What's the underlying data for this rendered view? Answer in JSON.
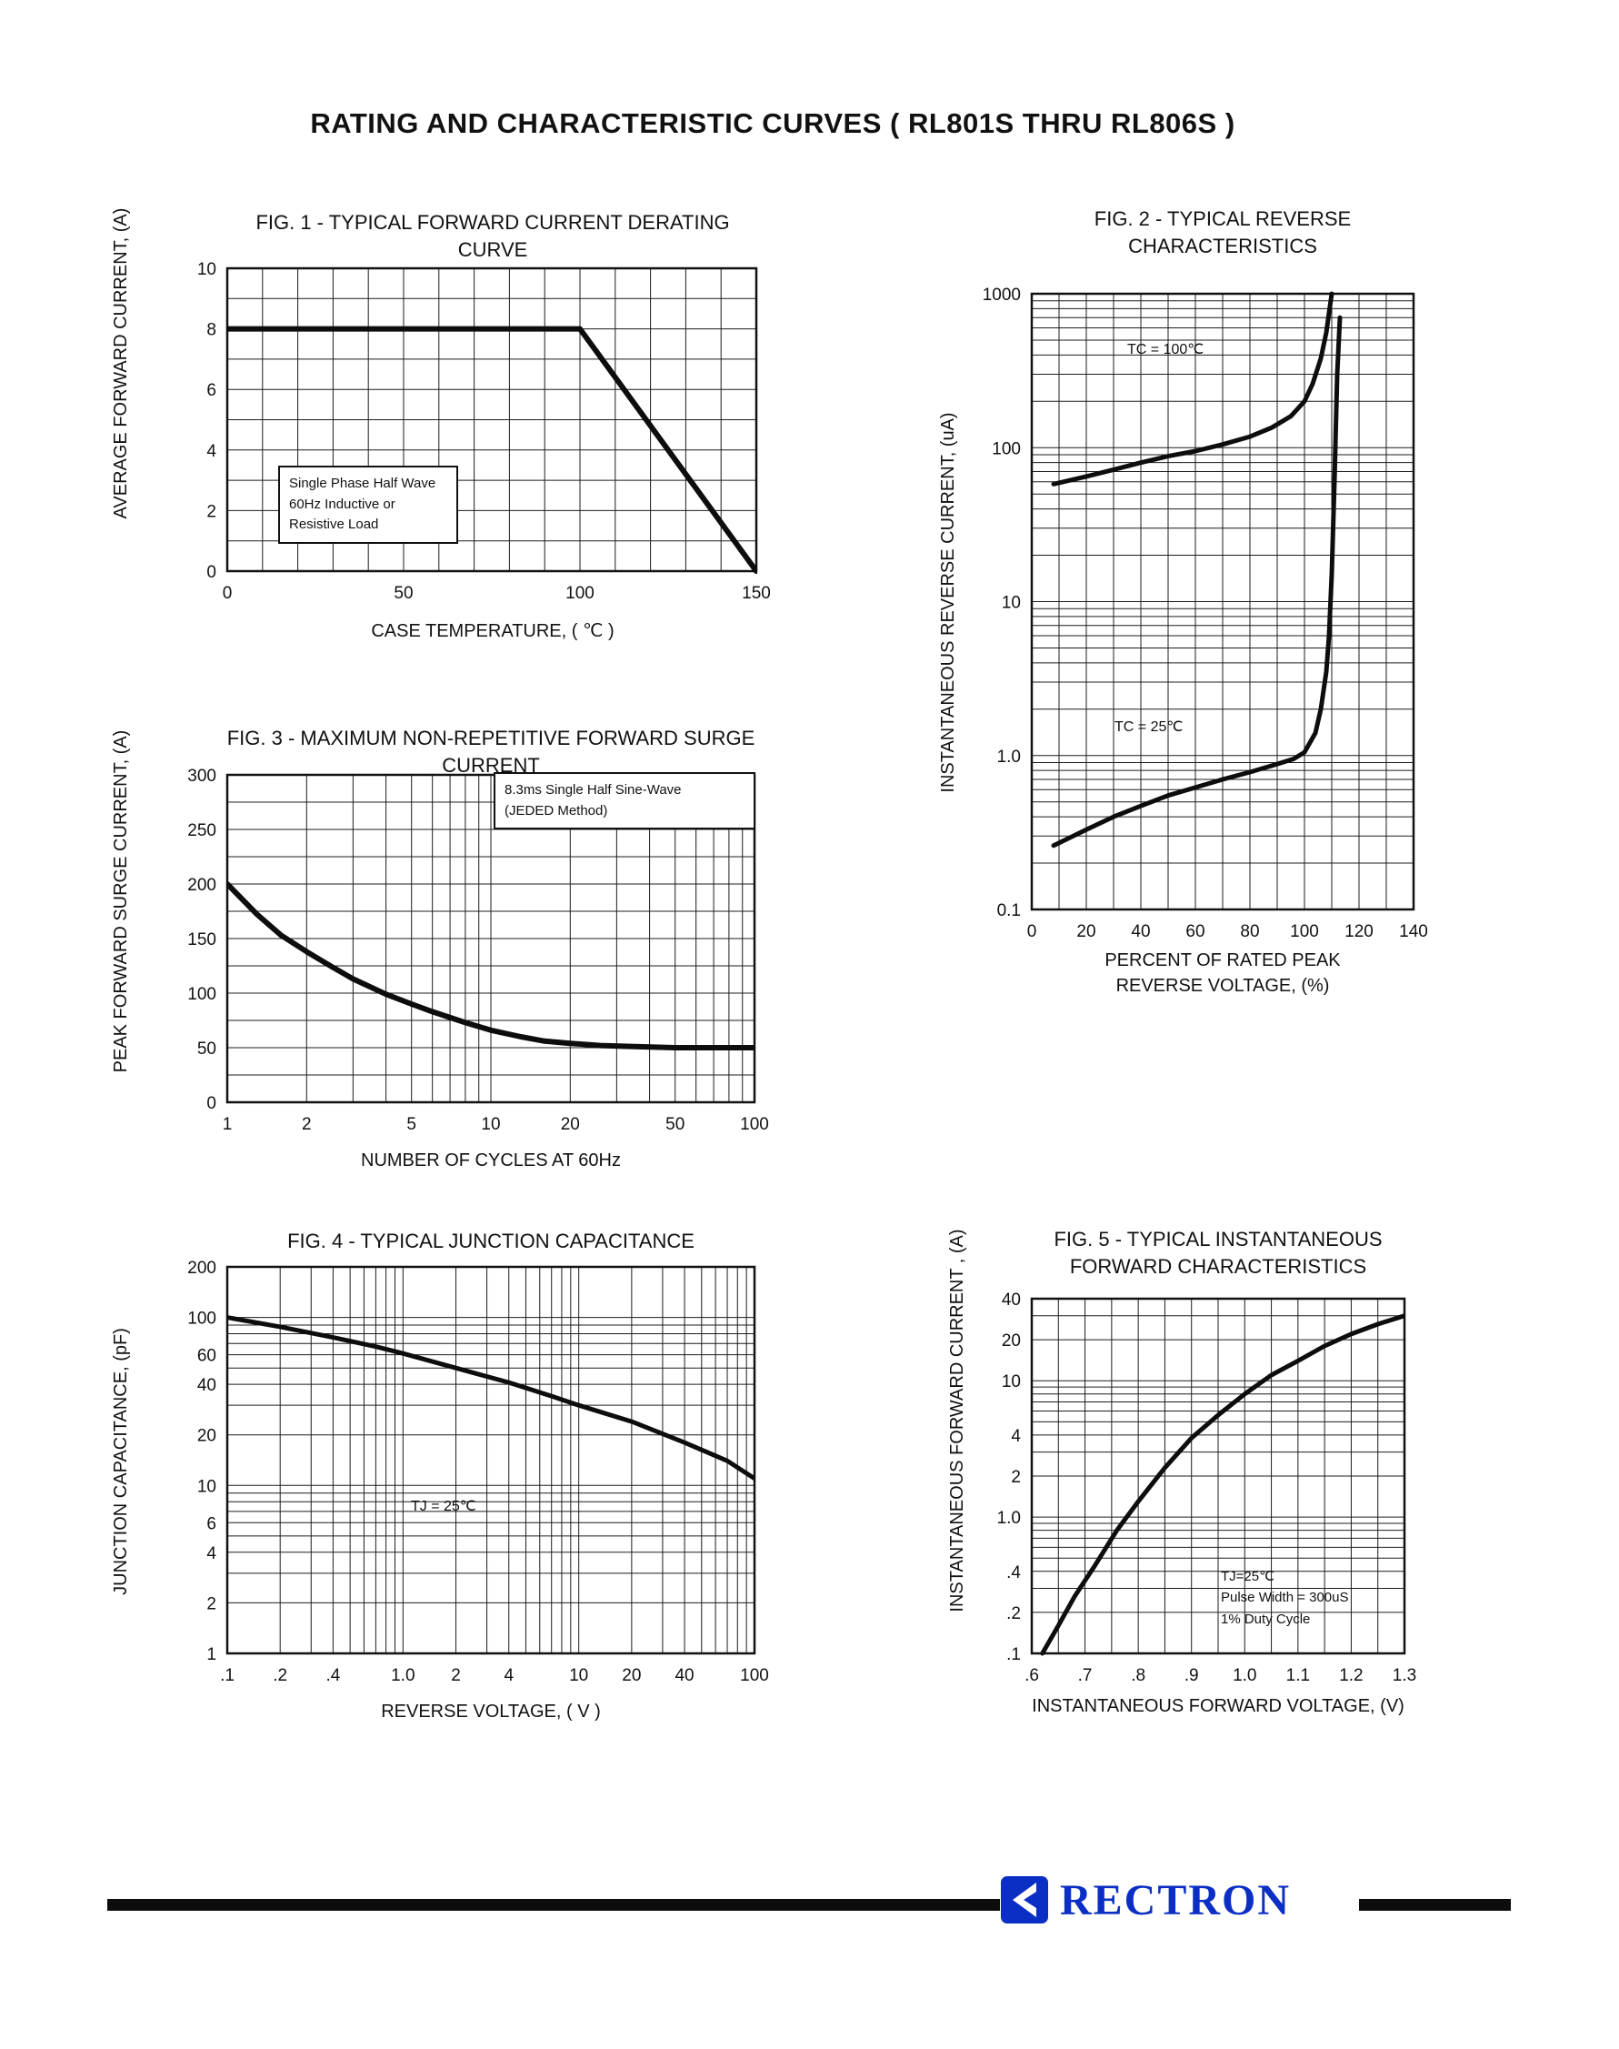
{
  "page": {
    "title": "RATING AND CHARACTERISTIC CURVES ( RL801S THRU RL806S )"
  },
  "footer": {
    "brand": "RECTRON",
    "brand_color": "#0b2fc4",
    "rule_color": "#0d0d0d"
  },
  "chart_data": [
    {
      "id": "fig1",
      "type": "line",
      "title": "FIG. 1 - TYPICAL FORWARD CURRENT DERATING CURVE",
      "xlabel": "CASE TEMPERATURE, ( ℃ )",
      "ylabel": "AVERAGE FORWARD CURRENT, (A)",
      "x_scale": "linear",
      "y_scale": "linear",
      "xlim": [
        0,
        150
      ],
      "ylim": [
        0,
        10
      ],
      "x_grid_step": 10,
      "y_grid_step": 1,
      "x_tick_values": [
        0,
        50,
        100,
        150
      ],
      "x_tick_labels": [
        "0",
        "50",
        "100",
        "150"
      ],
      "y_tick_values": [
        0,
        2,
        4,
        6,
        8,
        10
      ],
      "y_tick_labels": [
        "0",
        "2",
        "4",
        "6",
        "8",
        "10"
      ],
      "grid": true,
      "series": [
        {
          "name": "forward-current-derating",
          "points": [
            [
              0,
              8
            ],
            [
              100,
              8
            ],
            [
              150,
              0
            ]
          ]
        }
      ],
      "annotations": [
        {
          "text": "Single Phase Half Wave\n60Hz Inductive or\nResistive Load"
        }
      ]
    },
    {
      "id": "fig2",
      "type": "line",
      "title": "FIG. 2 - TYPICAL REVERSE\nCHARACTERISTICS",
      "xlabel": "PERCENT OF RATED PEAK\nREVERSE VOLTAGE, (%)",
      "ylabel": "INSTANTANEOUS REVERSE CURRENT, (uA)",
      "x_scale": "linear",
      "y_scale": "log",
      "xlim": [
        0,
        140
      ],
      "ylim": [
        0.1,
        1000
      ],
      "x_grid_step": 10,
      "x_tick_values": [
        0,
        20,
        40,
        60,
        80,
        100,
        120,
        140
      ],
      "x_tick_labels": [
        "0",
        "20",
        "40",
        "60",
        "80",
        "100",
        "120",
        "140"
      ],
      "y_tick_values": [
        1000,
        100,
        10,
        1,
        0.1
      ],
      "y_tick_labels": [
        "1000",
        "100",
        "10",
        "1.0",
        "0.1"
      ],
      "grid": true,
      "series": [
        {
          "name": "TC = 100C",
          "points": [
            [
              8,
              58
            ],
            [
              20,
              65
            ],
            [
              30,
              72
            ],
            [
              40,
              80
            ],
            [
              50,
              88
            ],
            [
              60,
              95
            ],
            [
              70,
              105
            ],
            [
              80,
              118
            ],
            [
              88,
              135
            ],
            [
              95,
              160
            ],
            [
              100,
              200
            ],
            [
              103,
              260
            ],
            [
              106,
              380
            ],
            [
              108,
              560
            ],
            [
              109,
              750
            ],
            [
              110,
              1000
            ]
          ]
        },
        {
          "name": "TC = 25C",
          "points": [
            [
              8,
              0.26
            ],
            [
              20,
              0.33
            ],
            [
              30,
              0.4
            ],
            [
              40,
              0.47
            ],
            [
              50,
              0.55
            ],
            [
              60,
              0.62
            ],
            [
              70,
              0.7
            ],
            [
              80,
              0.78
            ],
            [
              90,
              0.88
            ],
            [
              96,
              0.95
            ],
            [
              100,
              1.05
            ],
            [
              104,
              1.4
            ],
            [
              106,
              2
            ],
            [
              108,
              3.5
            ],
            [
              109,
              6
            ],
            [
              110,
              15
            ],
            [
              111,
              60
            ],
            [
              112,
              300
            ],
            [
              113,
              700
            ]
          ]
        }
      ],
      "annotations": [
        {
          "text": "TC = 100℃"
        },
        {
          "text": "TC = 25℃"
        }
      ]
    },
    {
      "id": "fig3",
      "type": "line",
      "title": "FIG. 3 - MAXIMUM NON-REPETITIVE FORWARD SURGE CURRENT",
      "xlabel": "NUMBER OF CYCLES AT 60Hz",
      "ylabel": "PEAK FORWARD SURGE CURRENT, (A)",
      "x_scale": "log",
      "y_scale": "linear",
      "xlim": [
        1,
        100
      ],
      "ylim": [
        0,
        300
      ],
      "y_grid_step": 25,
      "x_tick_values": [
        1,
        2,
        5,
        10,
        20,
        50,
        100
      ],
      "x_tick_labels": [
        "1",
        "2",
        "5",
        "10",
        "20",
        "50",
        "100"
      ],
      "y_tick_values": [
        0,
        50,
        100,
        150,
        200,
        250,
        300
      ],
      "y_tick_labels": [
        "0",
        "50",
        "100",
        "150",
        "200",
        "250",
        "300"
      ],
      "grid": true,
      "series": [
        {
          "name": "peak-forward-surge-current",
          "points": [
            [
              1,
              200
            ],
            [
              1.3,
              172
            ],
            [
              1.6,
              153
            ],
            [
              2,
              138
            ],
            [
              2.5,
              124
            ],
            [
              3,
              113
            ],
            [
              4,
              99
            ],
            [
              5,
              90
            ],
            [
              6,
              83
            ],
            [
              8,
              73
            ],
            [
              10,
              66
            ],
            [
              13,
              60
            ],
            [
              16,
              56
            ],
            [
              20,
              54
            ],
            [
              26,
              52
            ],
            [
              35,
              51
            ],
            [
              50,
              50
            ],
            [
              70,
              50
            ],
            [
              100,
              50
            ]
          ]
        }
      ],
      "annotations": [
        {
          "text": "8.3ms Single Half Sine-Wave\n(JEDED Method)"
        }
      ]
    },
    {
      "id": "fig4",
      "type": "line",
      "title": "FIG. 4 - TYPICAL JUNCTION CAPACITANCE",
      "xlabel": "REVERSE VOLTAGE, ( V )",
      "ylabel": "JUNCTION CAPACITANCE, (pF)",
      "x_scale": "log",
      "y_scale": "log",
      "xlim": [
        0.1,
        100
      ],
      "ylim": [
        1,
        200
      ],
      "x_tick_values": [
        0.1,
        0.2,
        0.4,
        1,
        2,
        4,
        10,
        20,
        40,
        100
      ],
      "x_tick_labels": [
        ".1",
        ".2",
        ".4",
        "1.0",
        "2",
        "4",
        "10",
        "20",
        "40",
        "100"
      ],
      "y_tick_values": [
        1,
        2,
        4,
        6,
        10,
        20,
        40,
        60,
        100,
        200
      ],
      "y_tick_labels": [
        "1",
        "2",
        "4",
        "6",
        "10",
        "20",
        "40",
        "60",
        "100",
        "200"
      ],
      "grid": true,
      "series": [
        {
          "name": "junction-capacitance",
          "points": [
            [
              0.1,
              100
            ],
            [
              0.2,
              88
            ],
            [
              0.4,
              76
            ],
            [
              0.7,
              67
            ],
            [
              1,
              61
            ],
            [
              2,
              50
            ],
            [
              4,
              41
            ],
            [
              7,
              34
            ],
            [
              10,
              30
            ],
            [
              20,
              24
            ],
            [
              40,
              18
            ],
            [
              70,
              14
            ],
            [
              100,
              11
            ]
          ]
        }
      ],
      "annotations": [
        {
          "text": "TJ = 25℃"
        }
      ]
    },
    {
      "id": "fig5",
      "type": "line",
      "title": "FIG. 5 - TYPICAL INSTANTANEOUS\nFORWARD CHARACTERISTICS",
      "xlabel": "INSTANTANEOUS FORWARD VOLTAGE, (V)",
      "ylabel": "INSTANTANEOUS FORWARD CURRENT , (A)",
      "x_scale": "linear",
      "y_scale": "log",
      "xlim": [
        0.6,
        1.3
      ],
      "ylim": [
        0.1,
        40
      ],
      "x_grid_step": 0.05,
      "x_tick_values": [
        0.6,
        0.7,
        0.8,
        0.9,
        1.0,
        1.1,
        1.2,
        1.3
      ],
      "x_tick_labels": [
        ".6",
        ".7",
        ".8",
        ".9",
        "1.0",
        "1.1",
        "1.2",
        "1.3"
      ],
      "y_tick_values": [
        0.1,
        0.2,
        0.4,
        1,
        2,
        4,
        10,
        20,
        40
      ],
      "y_tick_labels": [
        ".1",
        ".2",
        ".4",
        "1.0",
        "2",
        "4",
        "10",
        "20",
        "40"
      ],
      "grid": true,
      "series": [
        {
          "name": "instantaneous-forward-characteristic",
          "points": [
            [
              0.62,
              0.1
            ],
            [
              0.65,
              0.16
            ],
            [
              0.68,
              0.26
            ],
            [
              0.72,
              0.45
            ],
            [
              0.76,
              0.8
            ],
            [
              0.8,
              1.3
            ],
            [
              0.85,
              2.3
            ],
            [
              0.9,
              3.8
            ],
            [
              0.95,
              5.6
            ],
            [
              1.0,
              8
            ],
            [
              1.05,
              11
            ],
            [
              1.1,
              14
            ],
            [
              1.15,
              18
            ],
            [
              1.2,
              22
            ],
            [
              1.25,
              26
            ],
            [
              1.3,
              30
            ]
          ]
        }
      ],
      "annotations": [
        {
          "text": "TJ=25℃\nPulse Width = 300uS\n1% Duty Cycle"
        }
      ]
    }
  ]
}
